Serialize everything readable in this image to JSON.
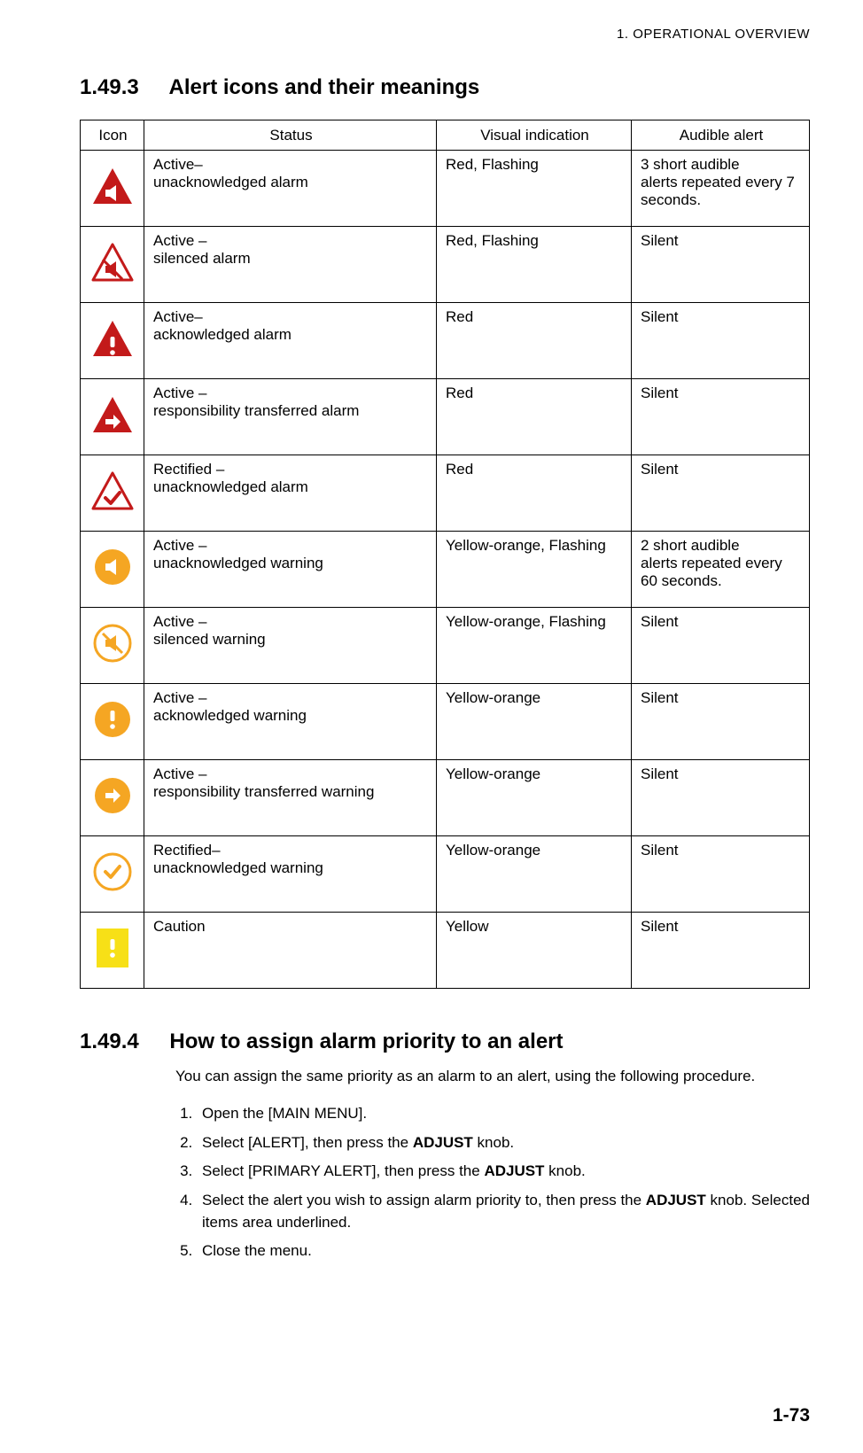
{
  "colors": {
    "red": "#c31a1a",
    "orange": "#f5a623",
    "yellow": "#f7e017",
    "white": "#ffffff",
    "black": "#000000"
  },
  "page": {
    "running_head": "1.  OPERATIONAL OVERVIEW",
    "page_number": "1-73"
  },
  "section1": {
    "number": "1.49.3",
    "title": "Alert icons and their meanings"
  },
  "table": {
    "headers": {
      "icon": "Icon",
      "status": "Status",
      "visual": "Visual indication",
      "audible": "Audible alert"
    },
    "rows": [
      {
        "icon": {
          "shape": "triangle",
          "fill_key": "red",
          "symbol": "speaker"
        },
        "status_l1": "Active–",
        "status_l2": "unacknowledged alarm",
        "visual": "Red, Flashing",
        "aud_l1": "3 short audible",
        "aud_l2": "alerts repeated every 7 seconds."
      },
      {
        "icon": {
          "shape": "triangle",
          "fill_key": "red",
          "symbol": "speaker-mute",
          "outline_only": true
        },
        "status_l1": "Active –",
        "status_l2": "silenced alarm",
        "visual": "Red, Flashing",
        "aud_l1": "Silent",
        "aud_l2": ""
      },
      {
        "icon": {
          "shape": "triangle",
          "fill_key": "red",
          "symbol": "exclaim"
        },
        "status_l1": "Active–",
        "status_l2": "acknowledged alarm",
        "visual": "Red",
        "aud_l1": "Silent",
        "aud_l2": ""
      },
      {
        "icon": {
          "shape": "triangle",
          "fill_key": "red",
          "symbol": "arrow"
        },
        "status_l1": "Active –",
        "status_l2": "responsibility transferred alarm",
        "visual": "Red",
        "aud_l1": "Silent",
        "aud_l2": ""
      },
      {
        "icon": {
          "shape": "triangle",
          "fill_key": "red",
          "symbol": "check",
          "outline_only": true
        },
        "status_l1": "Rectified –",
        "status_l2": "unacknowledged alarm",
        "visual": "Red",
        "aud_l1": "Silent",
        "aud_l2": ""
      },
      {
        "icon": {
          "shape": "circle",
          "fill_key": "orange",
          "symbol": "speaker"
        },
        "status_l1": "Active –",
        "status_l2": "unacknowledged warning",
        "visual": "Yellow-orange, Flashing",
        "aud_l1": "2 short audible",
        "aud_l2": "alerts repeated every 60 seconds."
      },
      {
        "icon": {
          "shape": "circle",
          "fill_key": "orange",
          "symbol": "speaker-mute",
          "outline_only": true
        },
        "status_l1": "Active –",
        "status_l2": "silenced warning",
        "visual": "Yellow-orange, Flashing",
        "aud_l1": "Silent",
        "aud_l2": ""
      },
      {
        "icon": {
          "shape": "circle",
          "fill_key": "orange",
          "symbol": "exclaim"
        },
        "status_l1": "Active –",
        "status_l2": "acknowledged warning",
        "visual": "Yellow-orange",
        "aud_l1": "Silent",
        "aud_l2": ""
      },
      {
        "icon": {
          "shape": "circle",
          "fill_key": "orange",
          "symbol": "arrow"
        },
        "status_l1": "Active –",
        "status_l2": "responsibility transferred warning",
        "visual": "Yellow-orange",
        "aud_l1": "Silent",
        "aud_l2": ""
      },
      {
        "icon": {
          "shape": "circle",
          "fill_key": "orange",
          "symbol": "check",
          "outline_only": true
        },
        "status_l1": "Rectified–",
        "status_l2": "unacknowledged warning",
        "visual": "Yellow-orange",
        "aud_l1": "Silent",
        "aud_l2": ""
      },
      {
        "icon": {
          "shape": "rect",
          "fill_key": "yellow",
          "symbol": "exclaim"
        },
        "status_l1": "Caution",
        "status_l2": "",
        "visual": "Yellow",
        "aud_l1": "Silent",
        "aud_l2": ""
      }
    ]
  },
  "section2": {
    "number": "1.49.4",
    "title": "How to assign alarm priority to an alert",
    "intro": "You can assign the same priority as an alarm to an alert, using the following procedure.",
    "steps": [
      {
        "pre": "Open the [MAIN MENU].",
        "bold": "",
        "post": ""
      },
      {
        "pre": "Select [ALERT], then press the ",
        "bold": "ADJUST",
        "post": " knob."
      },
      {
        "pre": "Select [PRIMARY ALERT], then press the ",
        "bold": "ADJUST",
        "post": " knob."
      },
      {
        "pre": "Select the alert you wish to assign alarm priority to, then press the ",
        "bold": "ADJUST",
        "post": " knob. Selected items area underlined."
      },
      {
        "pre": "Close the menu.",
        "bold": "",
        "post": ""
      }
    ]
  }
}
